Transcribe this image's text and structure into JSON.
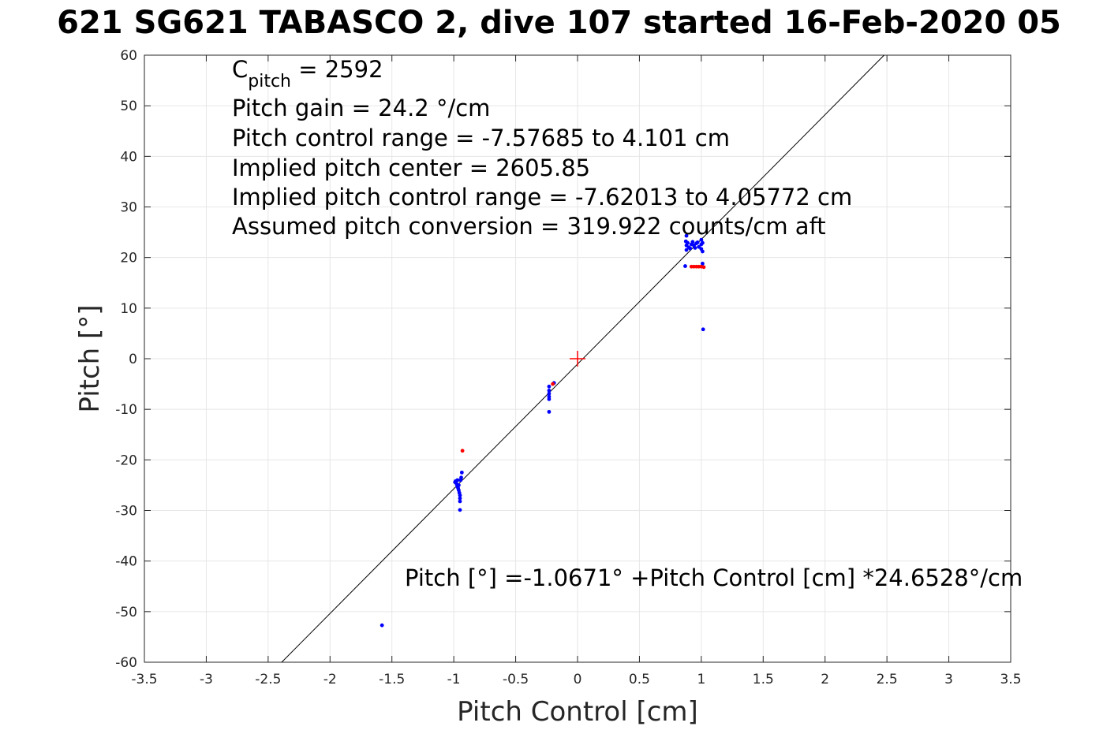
{
  "chart_data": {
    "type": "scatter",
    "title": "621 SG621 TABASCO 2, dive 107 started 16-Feb-2020 05",
    "xlabel": "Pitch Control [cm]",
    "ylabel": "Pitch [°]",
    "xlim": [
      -3.5,
      3.5
    ],
    "ylim": [
      -60,
      60
    ],
    "xticks": [
      -3.5,
      -3,
      -2.5,
      -2,
      -1.5,
      -1,
      -0.5,
      0,
      0.5,
      1,
      1.5,
      2,
      2.5,
      3,
      3.5
    ],
    "xtick_labels": [
      "-3.5",
      "-3",
      "-2.5",
      "-2",
      "-1.5",
      "-1",
      "-0.5",
      "0",
      "0.5",
      "1",
      "1.5",
      "2",
      "2.5",
      "3",
      "3.5"
    ],
    "yticks": [
      -60,
      -50,
      -40,
      -30,
      -20,
      -10,
      0,
      10,
      20,
      30,
      40,
      50,
      60
    ],
    "ytick_labels": [
      "-60",
      "-50",
      "-40",
      "-30",
      "-20",
      "-10",
      "0",
      "10",
      "20",
      "30",
      "40",
      "50",
      "60"
    ],
    "grid": true,
    "fit_line": {
      "intercept": -1.0671,
      "slope": 24.6528,
      "color": "#000000"
    },
    "center_marker": {
      "x": 0,
      "y": 0,
      "color": "#ff0000"
    },
    "annotations": {
      "cpitch_prefix": "C",
      "cpitch_subscript": "pitch",
      "cpitch_suffix": " = 2592",
      "lines": [
        "Pitch gain = 24.2 °/cm",
        "Pitch control range = -7.57685 to 4.101 cm",
        "Implied pitch center = 2605.85",
        "Implied pitch control range = -7.62013 to 4.05772 cm",
        "Assumed pitch conversion = 319.922 counts/cm aft"
      ],
      "fit_equation": "Pitch [°] =-1.0671° +Pitch Control [cm] *24.6528°/cm"
    },
    "series": [
      {
        "color": "#0000ff",
        "points": [
          [
            -1.58,
            -52.7
          ],
          [
            -0.985,
            -24.2
          ],
          [
            -0.98,
            -24.6
          ],
          [
            -0.975,
            -24.9
          ],
          [
            -0.97,
            -25.3
          ],
          [
            -0.965,
            -25.6
          ],
          [
            -0.96,
            -26.0
          ],
          [
            -0.955,
            -26.5
          ],
          [
            -0.95,
            -27.0
          ],
          [
            -0.95,
            -27.6
          ],
          [
            -0.95,
            -28.2
          ],
          [
            -0.95,
            -29.9
          ],
          [
            -0.94,
            -23.5
          ],
          [
            -0.935,
            -22.5
          ],
          [
            -0.945,
            -24.0
          ],
          [
            -0.97,
            -24.0
          ],
          [
            -0.99,
            -24.4
          ],
          [
            -0.96,
            -25.0
          ],
          [
            -0.23,
            -5.5
          ],
          [
            -0.23,
            -6.3
          ],
          [
            -0.23,
            -6.9
          ],
          [
            -0.23,
            -7.5
          ],
          [
            -0.23,
            -8.0
          ],
          [
            -0.23,
            -10.5
          ],
          [
            -0.19,
            -4.8
          ],
          [
            0.88,
            24.3
          ],
          [
            0.875,
            23.2
          ],
          [
            0.88,
            22.4
          ],
          [
            0.88,
            21.5
          ],
          [
            0.87,
            18.3
          ],
          [
            0.9,
            22.0
          ],
          [
            0.92,
            22.6
          ],
          [
            0.94,
            22.4
          ],
          [
            0.96,
            22.8
          ],
          [
            0.98,
            22.1
          ],
          [
            1.0,
            22.6
          ],
          [
            1.0,
            21.7
          ],
          [
            1.01,
            22.9
          ],
          [
            1.01,
            21.2
          ],
          [
            1.0,
            23.5
          ],
          [
            0.89,
            22.9
          ],
          [
            0.91,
            21.8
          ],
          [
            0.95,
            21.9
          ],
          [
            0.97,
            23.0
          ],
          [
            0.93,
            23.1
          ],
          [
            1.01,
            18.8
          ],
          [
            1.015,
            5.8
          ]
        ]
      },
      {
        "color": "#ff0000",
        "points": [
          [
            -0.93,
            -18.2
          ],
          [
            -0.2,
            -5.0
          ],
          [
            0.92,
            18.2
          ],
          [
            0.94,
            18.2
          ],
          [
            0.96,
            18.2
          ],
          [
            0.98,
            18.2
          ],
          [
            1.0,
            18.2
          ],
          [
            1.02,
            18.1
          ]
        ]
      }
    ]
  }
}
